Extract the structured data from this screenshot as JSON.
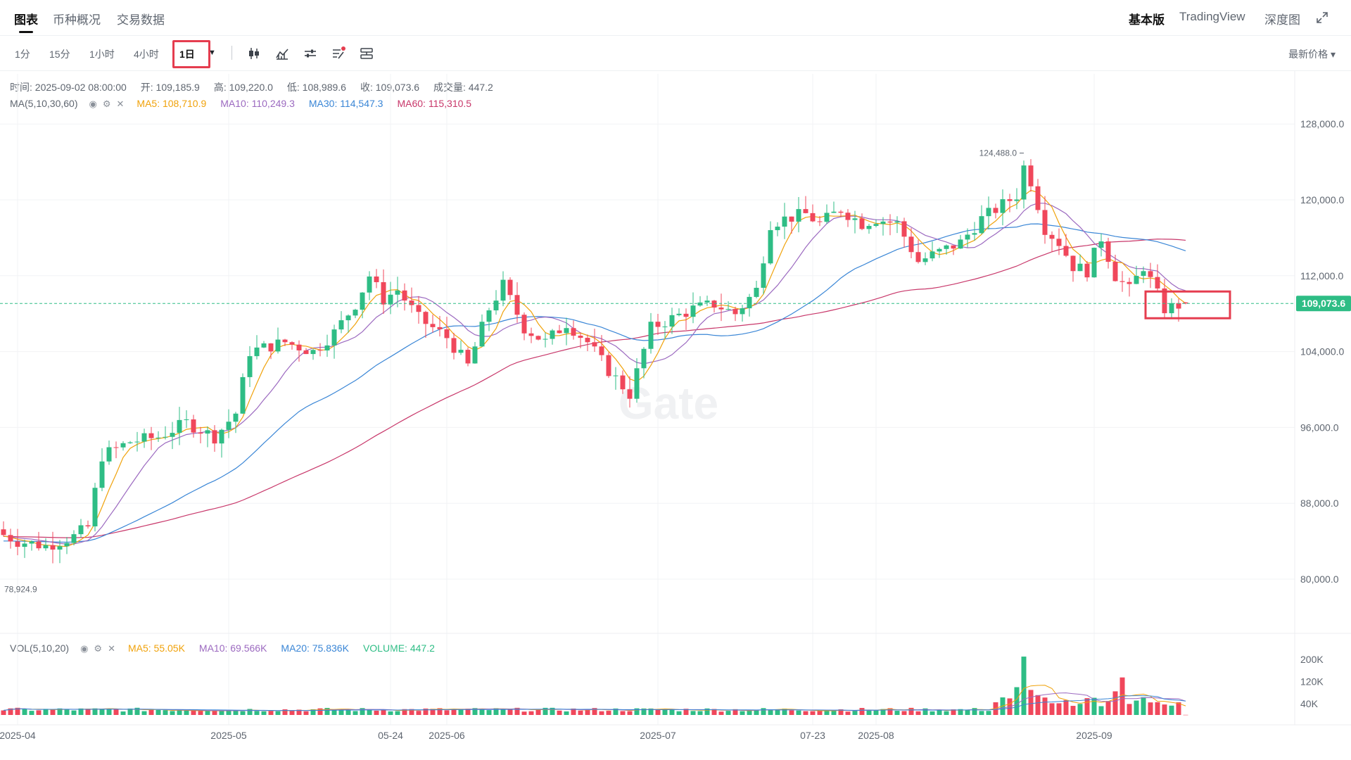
{
  "nav": {
    "tabs": [
      "图表",
      "币种概况",
      "交易数据"
    ],
    "right": [
      "基本版",
      "TradingView",
      "深度图"
    ]
  },
  "toolbar": {
    "intervals": [
      "1分",
      "15分",
      "1小时",
      "4小时",
      "1日"
    ],
    "selected_interval": "1日",
    "price_type": "最新价格 ▾",
    "icons": [
      "candlestick-icon",
      "indicator-icon",
      "settings-icon",
      "strategy-icon",
      "compare-icon"
    ]
  },
  "ohlc": {
    "time": "时间: 2025-09-02 08:00:00",
    "open": "开: 109,185.9",
    "high": "高: 109,220.0",
    "low": "低: 108,989.6",
    "close": "收: 109,073.6",
    "volume": "成交量: 447.2"
  },
  "ma_legend": {
    "name": "MA(5,10,30,60)",
    "ma5": "MA5: 108,710.9",
    "ma10": "MA10: 110,249.3",
    "ma30": "MA30: 114,547.3",
    "ma60": "MA60: 115,310.5"
  },
  "vol_legend": {
    "name": "VOL(5,10,20)",
    "ma5": "MA5: 55.05K",
    "ma10": "MA10: 69.566K",
    "ma20": "MA20: 75.836K",
    "volume": "VOLUME: 447.2"
  },
  "colors": {
    "up": "#2ebd85",
    "down": "#f0475b",
    "ma5": "#f0a20b",
    "ma10": "#9c6ac0",
    "ma30": "#3a86d6",
    "ma60": "#c8376a",
    "price_tag": "#2ebd85",
    "highlight": "#e53d4f"
  },
  "watermark": "Gate",
  "chart_data": {
    "type": "candlestick",
    "price_axis": {
      "ticks": [
        "128,000.0",
        "120,000.0",
        "112,000.0",
        "104,000.0",
        "96,000.0",
        "88,000.0",
        "80,000.0"
      ],
      "tick_values": [
        128000,
        120000,
        112000,
        104000,
        96000,
        88000,
        80000
      ],
      "ylim": [
        73000,
        133000
      ]
    },
    "volume_axis": {
      "ticks": [
        "200K",
        "120K",
        "40K"
      ],
      "tick_values": [
        200000,
        120000,
        40000
      ]
    },
    "x_axis": {
      "labels": [
        "2025-04",
        "2025-05",
        "05-24",
        "2025-06",
        "2025-07",
        "07-23",
        "2025-08",
        "2025-09"
      ],
      "label_days": [
        0,
        30,
        53,
        61,
        91,
        113,
        122,
        153
      ]
    },
    "current_price": "109,073.6",
    "current_price_value": 109073.6,
    "max_label": "124,488.0",
    "max_value": 124488,
    "min_label": "78,924.9",
    "min_value": 78924.9,
    "price_anchors": [
      [
        -3,
        85000
      ],
      [
        0,
        84000
      ],
      [
        4,
        83500
      ],
      [
        8,
        84500
      ],
      [
        10,
        85500
      ],
      [
        12,
        93000
      ],
      [
        16,
        94500
      ],
      [
        20,
        95000
      ],
      [
        24,
        96500
      ],
      [
        28,
        95000
      ],
      [
        31,
        97500
      ],
      [
        33,
        104000
      ],
      [
        38,
        105000
      ],
      [
        42,
        104000
      ],
      [
        45,
        106000
      ],
      [
        48,
        109000
      ],
      [
        50,
        112000
      ],
      [
        52,
        109500
      ],
      [
        54,
        110500
      ],
      [
        57,
        107500
      ],
      [
        61,
        105500
      ],
      [
        64,
        102500
      ],
      [
        67,
        108500
      ],
      [
        69,
        111000
      ],
      [
        72,
        106500
      ],
      [
        75,
        105000
      ],
      [
        78,
        107000
      ],
      [
        81,
        105000
      ],
      [
        84,
        102000
      ],
      [
        87,
        99500
      ],
      [
        90,
        106500
      ],
      [
        93,
        107500
      ],
      [
        96,
        108500
      ],
      [
        99,
        109000
      ],
      [
        102,
        108000
      ],
      [
        105,
        110500
      ],
      [
        107,
        117500
      ],
      [
        109,
        118000
      ],
      [
        112,
        118500
      ],
      [
        114,
        117500
      ],
      [
        117,
        119000
      ],
      [
        120,
        117500
      ],
      [
        122,
        118000
      ],
      [
        125,
        117500
      ],
      [
        128,
        113500
      ],
      [
        131,
        114500
      ],
      [
        134,
        115500
      ],
      [
        137,
        118000
      ],
      [
        140,
        119500
      ],
      [
        142,
        120500
      ],
      [
        143,
        123500
      ],
      [
        144,
        122000
      ],
      [
        146,
        117000
      ],
      [
        148,
        115500
      ],
      [
        150,
        113000
      ],
      [
        152,
        112500
      ],
      [
        154,
        116000
      ],
      [
        156,
        112000
      ],
      [
        158,
        110500
      ],
      [
        160,
        113000
      ],
      [
        163,
        108500
      ],
      [
        166,
        109073.6
      ]
    ]
  }
}
